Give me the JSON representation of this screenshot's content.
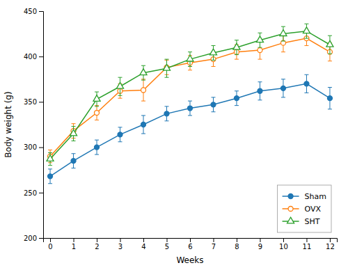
{
  "chart_data": {
    "type": "line",
    "x_label": "Weeks",
    "y_label": "Body weight (g)",
    "x": [
      0,
      1,
      2,
      3,
      4,
      5,
      6,
      7,
      8,
      9,
      10,
      11,
      12
    ],
    "xlim": [
      -0.3,
      12.3
    ],
    "xticks": [
      0,
      1,
      2,
      3,
      4,
      5,
      6,
      7,
      8,
      9,
      10,
      11,
      12
    ],
    "ylim": [
      200,
      450
    ],
    "yticks": [
      200,
      250,
      300,
      350,
      400,
      450
    ],
    "grid": false,
    "legend": "lower right",
    "series": [
      {
        "name": "Sham",
        "marker": "circle",
        "values": [
          268,
          285,
          300,
          314,
          325,
          337,
          343,
          347,
          354,
          362,
          365,
          370,
          354
        ],
        "errors": [
          8,
          8,
          8,
          8,
          10,
          8,
          8,
          8,
          8,
          10,
          10,
          10,
          12
        ]
      },
      {
        "name": "OVX",
        "marker": "circle-open",
        "values": [
          290,
          318,
          338,
          362,
          363,
          388,
          393,
          397,
          405,
          407,
          415,
          420,
          405
        ],
        "errors": [
          7,
          8,
          8,
          8,
          12,
          8,
          8,
          8,
          8,
          10,
          10,
          8,
          10
        ]
      },
      {
        "name": "SHT",
        "marker": "triangle-open",
        "values": [
          287,
          315,
          353,
          367,
          382,
          387,
          397,
          404,
          410,
          418,
          425,
          428,
          413
        ],
        "errors": [
          7,
          8,
          8,
          10,
          8,
          10,
          8,
          8,
          8,
          8,
          8,
          8,
          10
        ]
      }
    ]
  }
}
